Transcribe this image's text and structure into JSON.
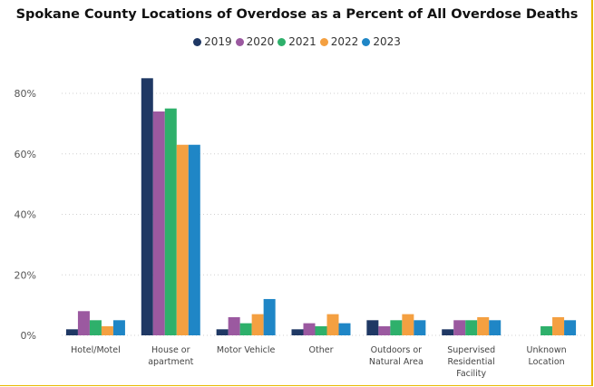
{
  "chart_data": {
    "type": "bar",
    "title": "Spokane County Locations of Overdose as a Percent of All Overdose Deaths",
    "categories": [
      [
        "Hotel/Motel"
      ],
      [
        "House or",
        "apartment"
      ],
      [
        "Motor Vehicle"
      ],
      [
        "Other"
      ],
      [
        "Outdoors or",
        "Natural Area"
      ],
      [
        "Supervised",
        "Residential",
        "Facility"
      ],
      [
        "Unknown",
        "Location"
      ]
    ],
    "series": [
      {
        "name": "2019",
        "color": "#1f3864",
        "values": [
          2,
          85,
          2,
          2,
          5,
          2,
          null
        ]
      },
      {
        "name": "2020",
        "color": "#9b59a0",
        "values": [
          8,
          74,
          6,
          4,
          3,
          5,
          null
        ]
      },
      {
        "name": "2021",
        "color": "#2eb06b",
        "values": [
          5,
          75,
          4,
          3,
          5,
          5,
          3
        ]
      },
      {
        "name": "2022",
        "color": "#f4a041",
        "values": [
          3,
          63,
          7,
          7,
          7,
          6,
          6
        ]
      },
      {
        "name": "2023",
        "color": "#1f86c6",
        "values": [
          5,
          63,
          12,
          4,
          5,
          5,
          5
        ]
      }
    ],
    "yticks": [
      "0%",
      "20%",
      "40%",
      "60%",
      "80%"
    ],
    "ylim": [
      0,
      90
    ],
    "grid": true,
    "legend": "top",
    "xlabel": "",
    "ylabel": ""
  }
}
